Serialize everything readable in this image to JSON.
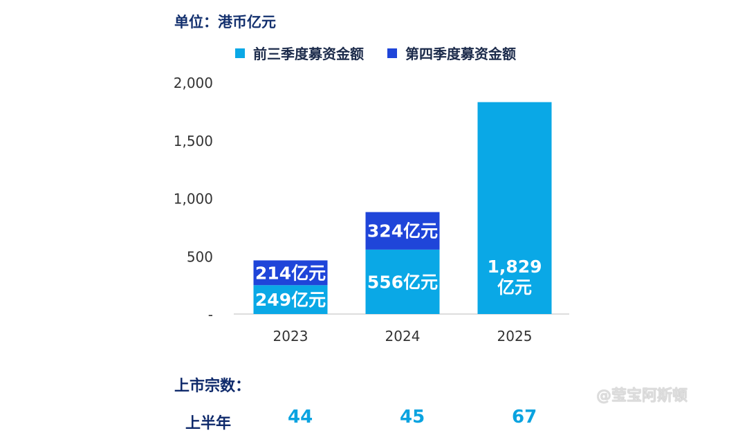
{
  "unit_label": "单位：港币亿元",
  "colors": {
    "first_three_quarters": "#0aa8e6",
    "fourth_quarter": "#1f45d9",
    "text": "#13306e"
  },
  "chart_data": {
    "type": "bar",
    "stacked": true,
    "categories": [
      "2023",
      "2024",
      "2025"
    ],
    "series": [
      {
        "name": "前三季度募资金额",
        "values": [
          249,
          556,
          1829
        ],
        "labels": [
          "249亿元",
          "556亿元",
          "1,829\n亿元"
        ]
      },
      {
        "name": "第四季度募资金额",
        "values": [
          214,
          324,
          null
        ],
        "labels": [
          "214亿元",
          "324亿元",
          ""
        ]
      }
    ],
    "yticks": [
      "-",
      "500",
      "1,000",
      "1,500",
      "2,000"
    ],
    "ylim": [
      0,
      2000
    ],
    "legend": "top",
    "grid": false
  },
  "listings": {
    "title": "上市宗数：",
    "row_label": "上半年",
    "values": [
      "44",
      "45",
      "67"
    ]
  },
  "watermark": "@莹宝阿斯顿"
}
